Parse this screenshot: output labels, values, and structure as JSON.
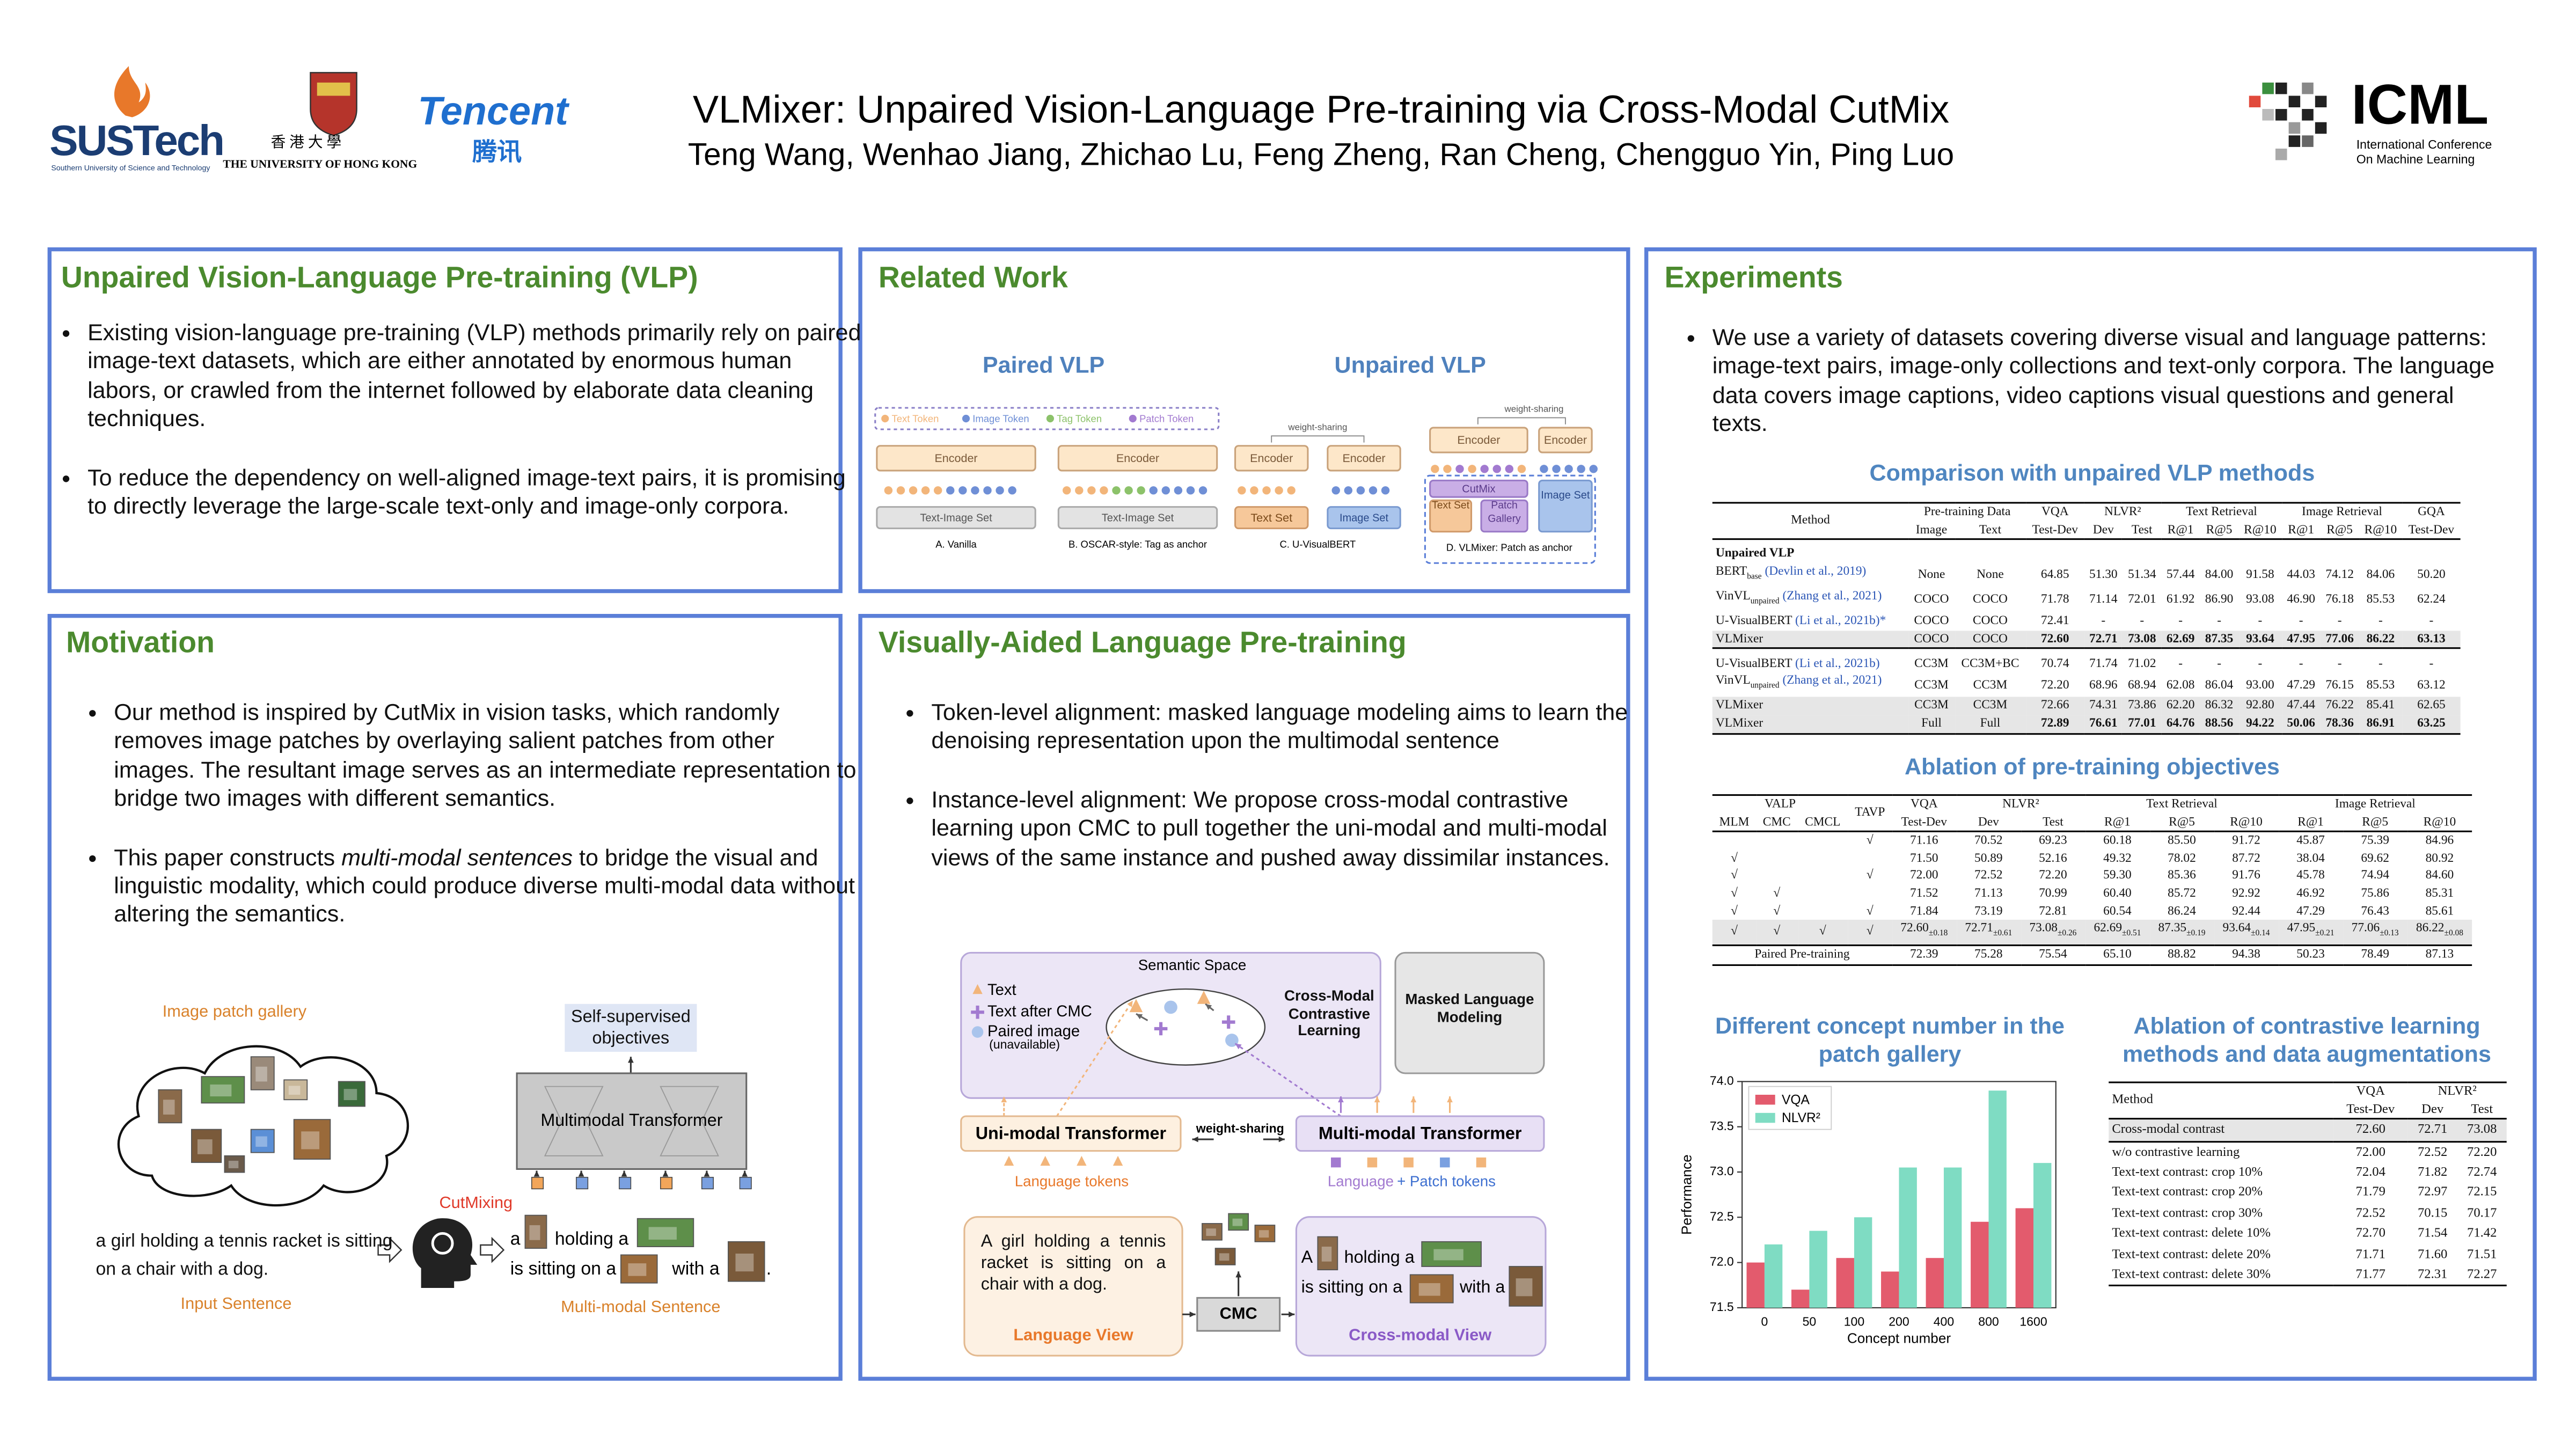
{
  "header": {
    "title": "VLMixer: Unpaired Vision-Language Pre-training via Cross-Modal CutMix",
    "authors": "Teng Wang, Wenhao Jiang, Zhichao Lu, Feng Zheng, Ran Cheng, Chengguo Yin, Ping Luo",
    "logos": {
      "sustech": "SUSTech",
      "sustech_sub": "Southern University of Science and Technology",
      "hku_cn": "香 港 大 學",
      "hku_en": "THE UNIVERSITY OF HONG KONG",
      "tencent": "Tencent",
      "tencent_cn": "腾讯",
      "icml": "ICML",
      "icml_sub": [
        "International Conference",
        "On Machine Learning"
      ]
    }
  },
  "sections": {
    "vlp": {
      "title": "Unpaired Vision-Language Pre-training (VLP)",
      "bullets": [
        "Existing vision-language pre-training (VLP) methods primarily rely on paired image-text datasets, which are either annotated by enormous human labors, or crawled from the internet followed by elaborate data cleaning techniques.",
        "To reduce the dependency on well-aligned image-text pairs, it is promising to directly leverage the large-scale text-only and image-only corpora."
      ]
    },
    "related": {
      "title": "Related Work",
      "figure": {
        "paired": "Paired VLP",
        "unpaired": "Unpaired VLP",
        "legend": [
          "Text Token",
          "Image Token",
          "Tag Token",
          "Patch Token"
        ],
        "encoder": "Encoder",
        "text_image_set": "Text-Image Set",
        "weight_sharing": "weight-sharing",
        "text_set": "Text Set",
        "image_set": "Image Set",
        "cutmix": "CutMix",
        "patch_gallery": "Patch Gallery",
        "captions": [
          "A. Vanilla",
          "B. OSCAR-style: Tag as anchor",
          "C. U-VisualBERT",
          "D. VLMixer: Patch as anchor"
        ]
      }
    },
    "motivation": {
      "title": "Motivation",
      "bullets": [
        "Our method is inspired by CutMix in vision tasks, which randomly removes image patches by overlaying salient patches from other images. The resultant image serves as an intermediate representation to bridge two images with different semantics.",
        {
          "before": "This paper constructs ",
          "emphasis": "multi-modal sentences",
          "after": " to bridge the visual and linguistic modality, which could produce diverse multi-modal data without altering the semantics."
        }
      ],
      "figure": {
        "gallery": "Image patch gallery",
        "objectives": "Self-supervised objectives",
        "transformer": "Multimodal Transformer",
        "cutmixing": "CutMixing",
        "input": "a girl holding a tennis racket is sitting on a chair with a dog.",
        "input_label": "Input Sentence",
        "mixed_words": [
          "a",
          "holding a",
          "is sitting on a",
          "with a",
          "."
        ],
        "output_label": "Multi-modal Sentence"
      }
    },
    "valp": {
      "title": "Visually-Aided Language Pre-training",
      "bullets": [
        "Token-level alignment: masked language modeling aims to learn the denoising representation upon the multimodal sentence",
        "Instance-level alignment: We propose cross-modal contrastive learning upon CMC to pull together the uni-modal and multi-modal views of the same instance and pushed away dissimilar instances."
      ],
      "figure": {
        "semantic_space": "Semantic Space",
        "legend": [
          "Text",
          "Text after CMC",
          "Paired image"
        ],
        "unavailable": "(unavailable)",
        "cmcl": "Cross-Modal Contrastive Learning",
        "mlm": "Masked Language Modeling",
        "uni": "Uni-modal Transformer",
        "weight_sharing": "weight-sharing",
        "multi": "Multi-modal Transformer",
        "lang_tokens": "Language tokens",
        "lp_tokens": [
          "Language",
          "+ Patch tokens"
        ],
        "lang_sentence": "A girl holding a tennis racket is sitting on a chair with a dog.",
        "lang_view": "Language View",
        "cmc": "CMC",
        "cross_words": [
          "A",
          "holding a",
          "is sitting on a",
          "with a",
          "."
        ],
        "cross_view": "Cross-modal View"
      }
    },
    "experiments": {
      "title": "Experiments",
      "bullets": [
        "We use a variety of datasets covering diverse visual and language patterns: image-text pairs, image-only collections and text-only corpora. The language data covers image captions, video captions visual questions and general texts."
      ],
      "table1": {
        "caption": "Comparison with unpaired VLP methods",
        "head_top": [
          "Method",
          "Pre-training Data",
          "VQA",
          "NLVR²",
          "Text Retrieval",
          "Image Retrieval",
          "GQA"
        ],
        "head_sub": [
          "Image",
          "Text",
          "Test-Dev",
          "Dev",
          "Test",
          "R@1",
          "R@5",
          "R@10",
          "R@1",
          "R@5",
          "R@10",
          "Test-Dev"
        ],
        "groups": [
          {
            "label": "Unpaired VLP",
            "rows": [
              {
                "method": "BERT",
                "sub": "base",
                "cite": "(Devlin et al., 2019)",
                "cells": [
                  "None",
                  "None",
                  "64.85",
                  "51.30",
                  "51.34",
                  "57.44",
                  "84.00",
                  "91.58",
                  "44.03",
                  "74.12",
                  "84.06",
                  "50.20"
                ]
              },
              {
                "method": "VinVL",
                "sub": "unpaired",
                "cite": "(Zhang et al., 2021)",
                "cells": [
                  "COCO",
                  "COCO",
                  "71.78",
                  "71.14",
                  "72.01",
                  "61.92",
                  "86.90",
                  "93.08",
                  "46.90",
                  "76.18",
                  "85.53",
                  "62.24"
                ]
              },
              {
                "method": "U-VisualBERT",
                "cite": "(Li et al., 2021b)*",
                "cells": [
                  "COCO",
                  "COCO",
                  "72.41",
                  "-",
                  "-",
                  "-",
                  "-",
                  "-",
                  "-",
                  "-",
                  "-",
                  "-"
                ]
              },
              {
                "method": "VLMixer",
                "highlight": true,
                "cells": [
                  "COCO",
                  "COCO",
                  "72.60",
                  "72.71",
                  "73.08",
                  "62.69",
                  "87.35",
                  "93.64",
                  "47.95",
                  "77.06",
                  "86.22",
                  "63.13"
                ]
              }
            ]
          },
          {
            "rows": [
              {
                "method": "U-VisualBERT",
                "cite": "(Li et al., 2021b)",
                "cells": [
                  "CC3M",
                  "CC3M+BC",
                  "70.74",
                  "71.74",
                  "71.02",
                  "-",
                  "-",
                  "-",
                  "-",
                  "-",
                  "-",
                  "-"
                ]
              },
              {
                "method": "VinVL",
                "sub": "unpaired",
                "cite": "(Zhang et al., 2021)",
                "cells": [
                  "CC3M",
                  "CC3M",
                  "72.20",
                  "68.96",
                  "68.94",
                  "62.08",
                  "86.04",
                  "93.00",
                  "47.29",
                  "76.15",
                  "85.53",
                  "63.12"
                ]
              },
              {
                "method": "VLMixer",
                "highlight": true,
                "cells": [
                  "CC3M",
                  "CC3M",
                  "72.66",
                  "74.31",
                  "73.86",
                  "62.20",
                  "86.32",
                  "92.80",
                  "47.44",
                  "76.22",
                  "85.41",
                  "62.65"
                ]
              },
              {
                "method": "VLMixer",
                "highlight": true,
                "cells": [
                  "Full",
                  "Full",
                  "72.89",
                  "76.61",
                  "77.01",
                  "64.76",
                  "88.56",
                  "94.22",
                  "50.06",
                  "78.36",
                  "86.91",
                  "63.25"
                ]
              }
            ]
          }
        ]
      },
      "table2": {
        "caption": "Ablation of pre-training objectives",
        "head_top": [
          "VALP",
          "TAVP",
          "VQA",
          "NLVR²",
          "Text Retrieval",
          "Image Retrieval"
        ],
        "head_sub": [
          "MLM",
          "CMC",
          "CMCL",
          "Test-Dev",
          "Dev",
          "Test",
          "R@1",
          "R@5",
          "R@10",
          "R@1",
          "R@5",
          "R@10"
        ],
        "rows": [
          {
            "cells": [
              "",
              "",
              "",
              "√",
              "71.16",
              "70.52",
              "69.23",
              "60.18",
              "85.50",
              "91.72",
              "45.87",
              "75.39",
              "84.96"
            ]
          },
          {
            "cells": [
              "√",
              "",
              "",
              "",
              "71.50",
              "50.89",
              "52.16",
              "49.32",
              "78.02",
              "87.72",
              "38.04",
              "69.62",
              "80.92"
            ]
          },
          {
            "cells": [
              "√",
              "",
              "",
              "√",
              "72.00",
              "72.52",
              "72.20",
              "59.30",
              "85.36",
              "91.76",
              "45.78",
              "74.94",
              "84.60"
            ]
          },
          {
            "cells": [
              "√",
              "√",
              "",
              "",
              "71.52",
              "71.13",
              "70.99",
              "60.40",
              "85.72",
              "92.92",
              "46.92",
              "75.86",
              "85.31"
            ]
          },
          {
            "cells": [
              "√",
              "√",
              "",
              "√",
              "71.84",
              "73.19",
              "72.81",
              "60.54",
              "86.24",
              "92.44",
              "47.29",
              "76.43",
              "85.61"
            ]
          },
          {
            "highlight": true,
            "cells": [
              "√",
              "√",
              "√",
              "√",
              {
                "v": "72.60",
                "pm": "±0.18"
              },
              {
                "v": "72.71",
                "pm": "±0.61"
              },
              {
                "v": "73.08",
                "pm": "±0.26"
              },
              {
                "v": "62.69",
                "pm": "±0.51"
              },
              {
                "v": "87.35",
                "pm": "±0.19"
              },
              {
                "v": "93.64",
                "pm": "±0.14"
              },
              {
                "v": "47.95",
                "pm": "±0.21"
              },
              {
                "v": "77.06",
                "pm": "±0.13"
              },
              {
                "v": "86.22",
                "pm": "±0.08"
              }
            ]
          }
        ],
        "footer": {
          "label": "Paired Pre-training",
          "cells": [
            "72.39",
            "75.28",
            "75.54",
            "65.10",
            "88.82",
            "94.38",
            "50.23",
            "78.49",
            "87.13"
          ]
        }
      },
      "table3": {
        "caption": "Ablation of contrastive learning methods and data augmentations",
        "head_top": [
          "Method",
          "VQA",
          "NLVR²"
        ],
        "head_sub": [
          "Test-Dev",
          "Dev",
          "Test"
        ],
        "rows": [
          {
            "method": "Cross-modal contrast",
            "highlight": true,
            "cells": [
              "72.60",
              "72.71",
              "73.08"
            ]
          },
          {
            "method": "w/o contrastive learning",
            "cells": [
              "72.00",
              "72.52",
              "72.20"
            ]
          },
          {
            "method": "Text-text contrast: crop 10%",
            "cells": [
              "72.04",
              "71.82",
              "72.74"
            ]
          },
          {
            "method": "Text-text contrast: crop 20%",
            "cells": [
              "71.79",
              "72.97",
              "72.15"
            ]
          },
          {
            "method": "Text-text contrast: crop 30%",
            "cells": [
              "72.52",
              "70.15",
              "70.17"
            ]
          },
          {
            "method": "Text-text contrast: delete 10%",
            "cells": [
              "72.70",
              "71.54",
              "71.42"
            ]
          },
          {
            "method": "Text-text contrast: delete 20%",
            "cells": [
              "71.71",
              "71.60",
              "71.51"
            ]
          },
          {
            "method": "Text-text contrast: delete 30%",
            "cells": [
              "71.77",
              "72.31",
              "72.27"
            ]
          }
        ]
      }
    }
  },
  "chart_data": {
    "type": "bar",
    "title": "Different concept number in the patch gallery",
    "categories": [
      "0",
      "50",
      "100",
      "200",
      "400",
      "800",
      "1600"
    ],
    "series": [
      {
        "name": "VQA",
        "color": "#e35b6d",
        "values": [
          72.0,
          71.7,
          72.05,
          71.9,
          72.05,
          72.45,
          72.6
        ]
      },
      {
        "name": "NLVR²",
        "color": "#7fdcc3",
        "values": [
          72.2,
          72.35,
          72.5,
          73.05,
          73.05,
          73.9,
          73.1
        ]
      }
    ],
    "xlabel": "Concept number",
    "ylabel": "Performance",
    "ylim": [
      71.5,
      74.0
    ],
    "yticks": [
      {
        "value": 71.5,
        "label": "71.5"
      },
      {
        "value": 72.0,
        "label": "72.0"
      },
      {
        "value": 72.5,
        "label": "72.5"
      },
      {
        "value": 73.0,
        "label": "73.0"
      },
      {
        "value": 73.5,
        "label": "73.5"
      },
      {
        "value": 74.0,
        "label": "74.0"
      }
    ],
    "legend": "upper left",
    "grid": false
  }
}
